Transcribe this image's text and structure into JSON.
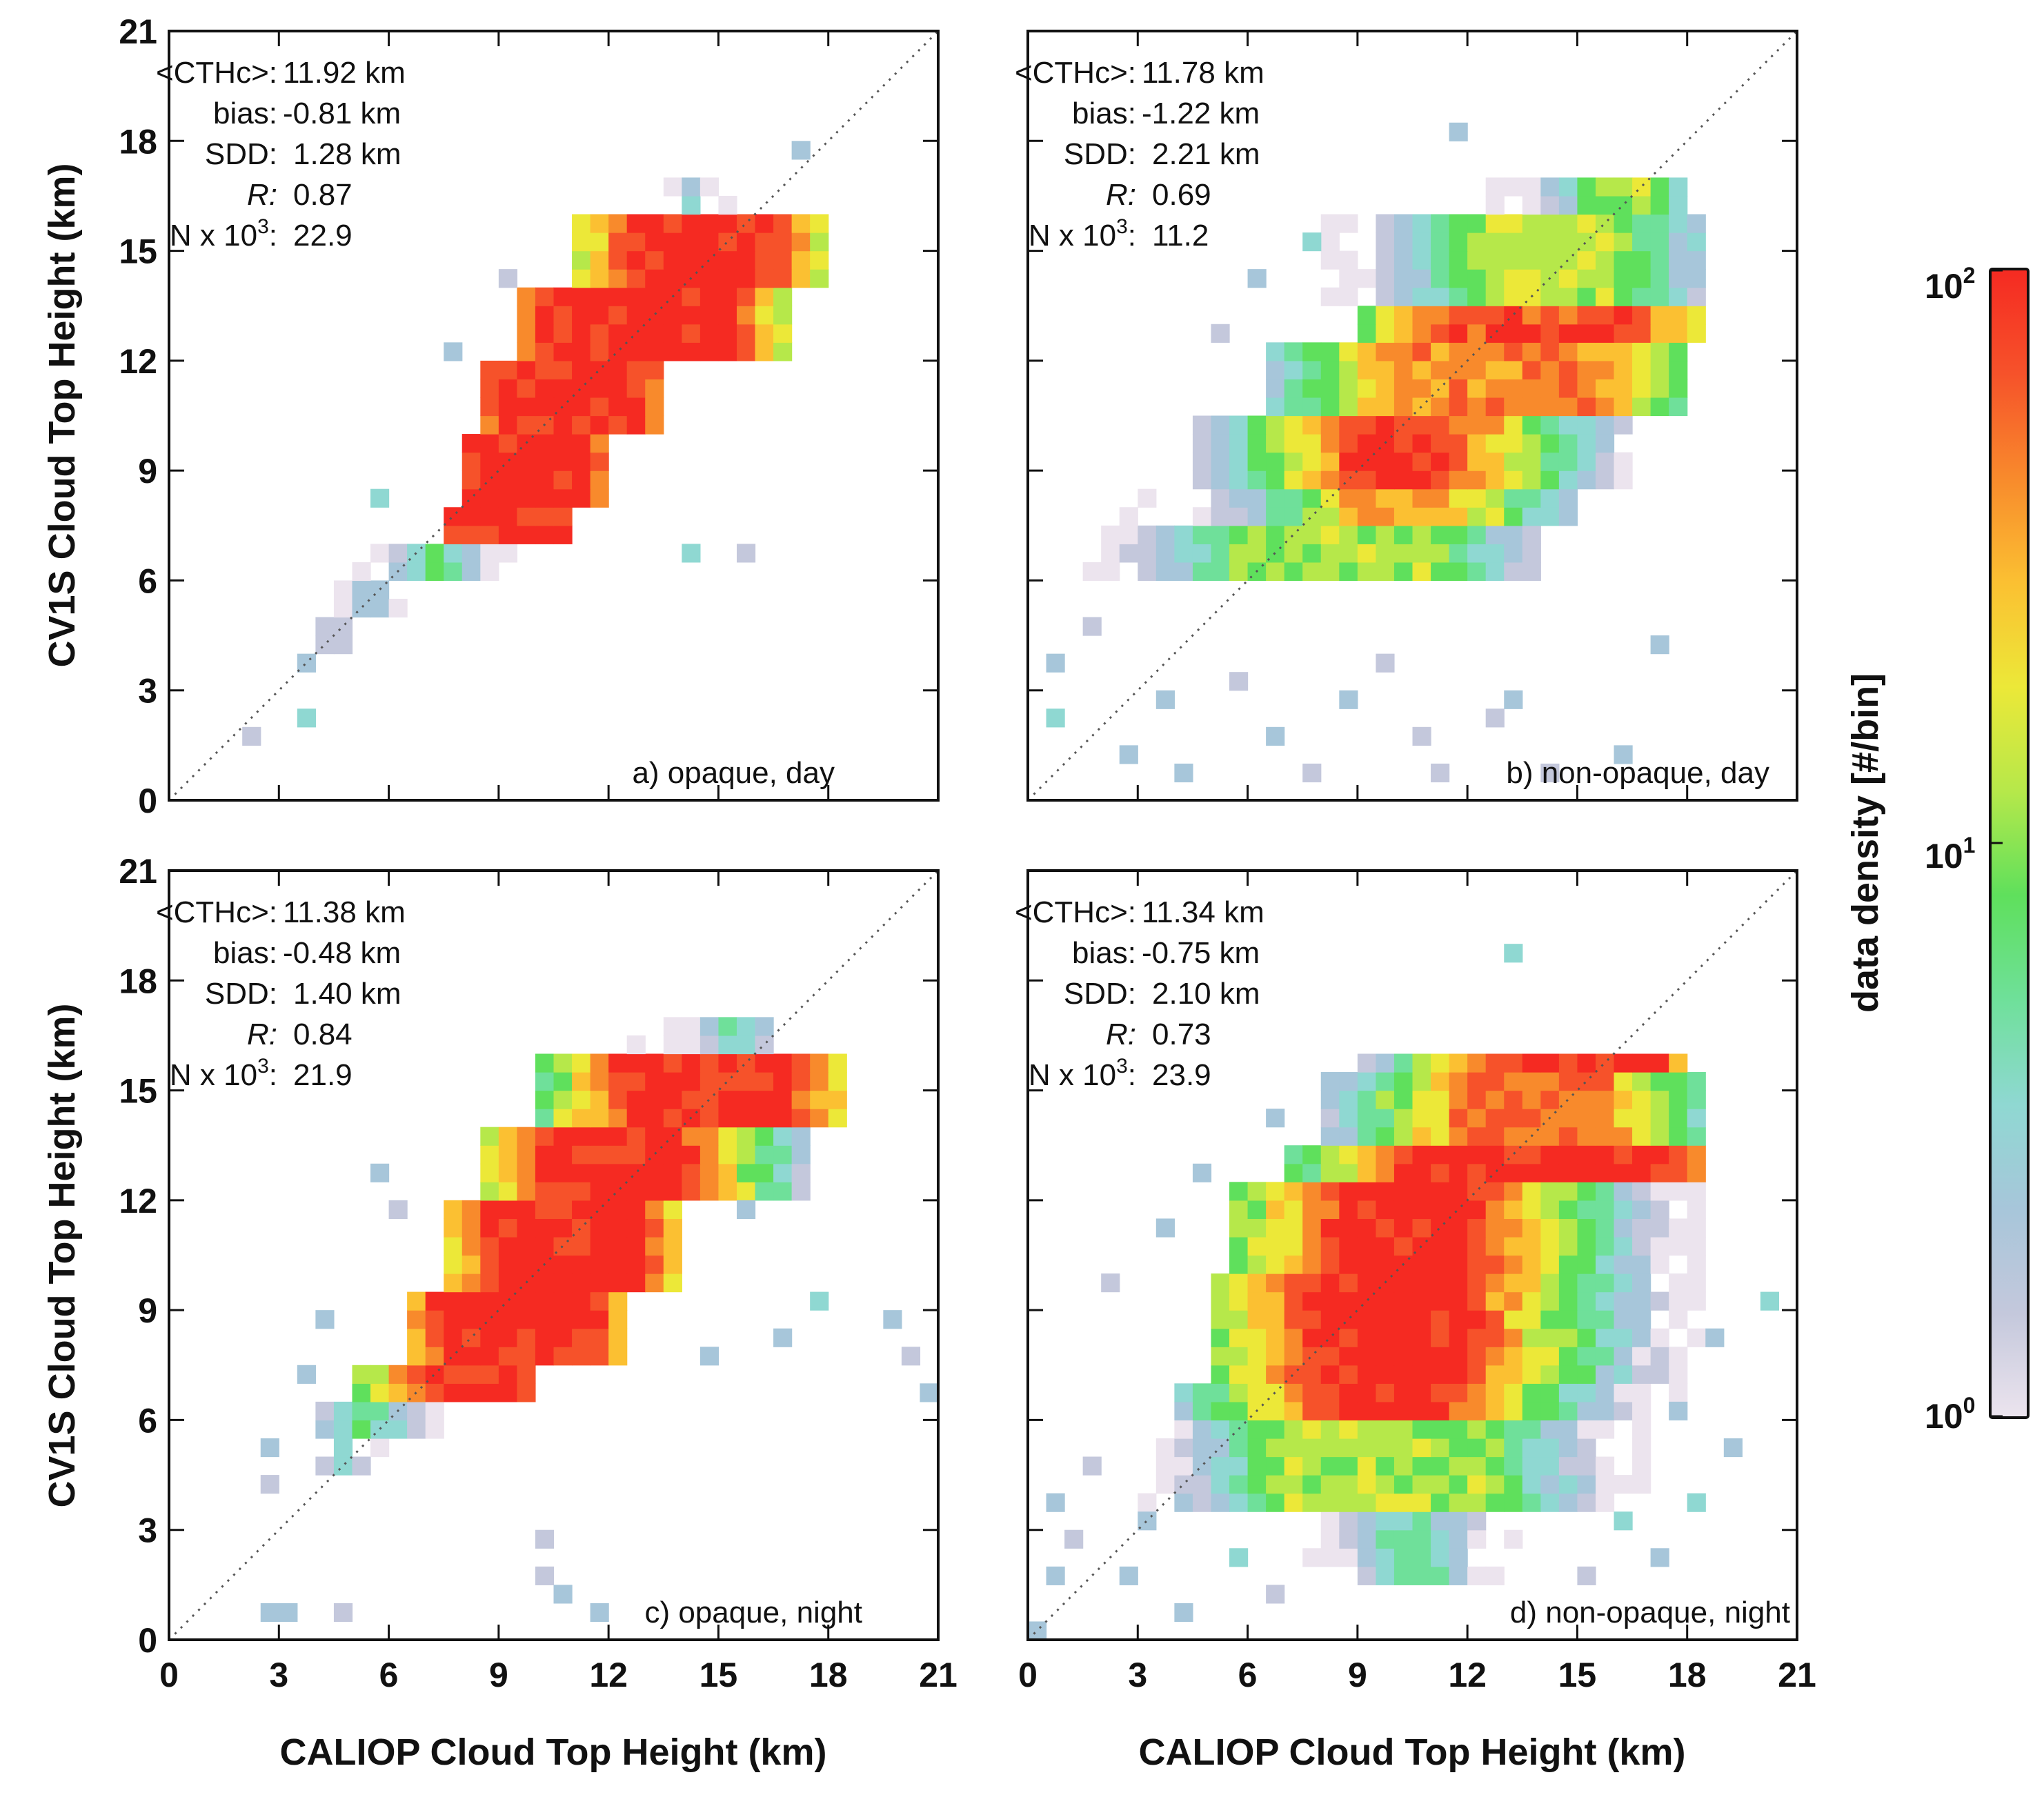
{
  "chart_data": {
    "type": "heatmap",
    "shared": {
      "xlabel": "CALIOP Cloud Top Height (km)",
      "ylabel": "CV1S Cloud Top Height (km)",
      "xlim": [
        0,
        21
      ],
      "ylim": [
        0,
        21
      ],
      "ticks": [
        0,
        3,
        6,
        9,
        12,
        15,
        18,
        21
      ],
      "bin_size_km": 0.5,
      "reference_line": "1:1 dotted"
    },
    "colorbar": {
      "label": "data density [#/bin]",
      "scale": "log",
      "range": [
        1,
        100
      ],
      "tick_labels": [
        {
          "base": "10",
          "exp": "2",
          "value": 100
        },
        {
          "base": "10",
          "exp": "1",
          "value": 10
        },
        {
          "base": "10",
          "exp": "0",
          "value": 1
        }
      ],
      "colors": [
        "#ece4ee",
        "#c4c8dc",
        "#a7c6da",
        "#8fd8d2",
        "#6fe09a",
        "#5fe05c",
        "#b6e84a",
        "#ece838",
        "#fbc032",
        "#f88a2c",
        "#f6522a",
        "#f52a22"
      ]
    },
    "panels": [
      {
        "id": "a",
        "label": "a) opaque, day",
        "stats": {
          "cth_label": "<CTHc>:",
          "cth": "11.92 km",
          "bias_label": "bias:",
          "bias": "-0.81 km",
          "sdd_label": "SDD:",
          "sdd": "1.28 km",
          "r_label": "R:",
          "r": "0.87",
          "n_label": "N x 10",
          "n_exp": "3",
          "n_suffix": ":",
          "n": "22.9"
        },
        "density_segments": [
          {
            "y0": 4,
            "y1": 5,
            "lo": 3.8,
            "hi": 5.2,
            "plo": 4.5,
            "phi": 4.5,
            "plateau": 2,
            "halo": 1.2
          },
          {
            "y0": 5,
            "y1": 6,
            "lo": 4.0,
            "hi": 6.5,
            "plo": 5.5,
            "phi": 5.5,
            "plateau": 3,
            "halo": 1.5
          },
          {
            "y0": 6,
            "y1": 7,
            "lo": 5.0,
            "hi": 9.5,
            "plo": 7.3,
            "phi": 7.3,
            "plateau": 8,
            "halo": 1.6
          },
          {
            "y0": 7,
            "y1": 8,
            "lo": 7.5,
            "hi": 11.0,
            "plo": 8.0,
            "phi": 10.5,
            "plateau": 100,
            "halo": 1.6
          },
          {
            "y0": 8,
            "y1": 10,
            "lo": 7.8,
            "hi": 12.0,
            "plo": 8.3,
            "phi": 11.3,
            "plateau": 100,
            "halo": 1.6
          },
          {
            "y0": 10,
            "y1": 12,
            "lo": 8.5,
            "hi": 13.5,
            "plo": 9.2,
            "phi": 12.8,
            "plateau": 100,
            "halo": 1.6
          },
          {
            "y0": 12,
            "y1": 14,
            "lo": 9.5,
            "hi": 17.0,
            "plo": 10.5,
            "phi": 15.3,
            "plateau": 100,
            "halo": 1.8
          },
          {
            "y0": 14,
            "y1": 16,
            "lo": 11.0,
            "hi": 18.0,
            "plo": 12.8,
            "phi": 16.3,
            "plateau": 100,
            "halo": 1.8
          },
          {
            "y0": 16,
            "y1": 17,
            "lo": 13.0,
            "hi": 15.5,
            "plo": 14.3,
            "phi": 14.3,
            "plateau": 3,
            "halo": 1.0
          }
        ],
        "sparse_points": [
          [
            2.0,
            1.5
          ],
          [
            3.8,
            3.5
          ],
          [
            3.8,
            2.2
          ],
          [
            5.5,
            8.0
          ],
          [
            9.0,
            14.0
          ],
          [
            9.5,
            13.0
          ],
          [
            17.0,
            17.5
          ],
          [
            15.5,
            6.5
          ],
          [
            14.0,
            6.8
          ],
          [
            7.5,
            12.0
          ]
        ],
        "hot_points": []
      },
      {
        "id": "b",
        "label": "b) non-opaque, day",
        "stats": {
          "cth_label": "<CTHc>:",
          "cth": "11.78 km",
          "bias_label": "bias:",
          "bias": "-1.22 km",
          "sdd_label": "SDD:",
          "sdd": "2.21 km",
          "r_label": "R:",
          "r": "0.69",
          "n_label": "N x 10",
          "n_exp": "3",
          "n_suffix": ":",
          "n": "11.2"
        },
        "density_segments": [
          {
            "y0": 6,
            "y1": 7.5,
            "lo": 1.5,
            "hi": 14.0,
            "plo": 6.0,
            "phi": 11.0,
            "plateau": 12,
            "halo": 3.0
          },
          {
            "y0": 7.5,
            "y1": 8.5,
            "lo": 2.5,
            "hi": 15.0,
            "plo": 9.0,
            "phi": 11.5,
            "plateau": 35,
            "halo": 2.6
          },
          {
            "y0": 8.5,
            "y1": 10.5,
            "lo": 4.5,
            "hi": 16.5,
            "plo": 9.0,
            "phi": 11.5,
            "plateau": 80,
            "halo": 2.6
          },
          {
            "y0": 10.5,
            "y1": 12.5,
            "lo": 6.5,
            "hi": 18.0,
            "plo": 10.0,
            "phi": 15.5,
            "plateau": 45,
            "halo": 2.8
          },
          {
            "y0": 12.5,
            "y1": 13.5,
            "lo": 9.0,
            "hi": 18.5,
            "plo": 11.5,
            "phi": 16.5,
            "plateau": 75,
            "halo": 2.6
          },
          {
            "y0": 13.5,
            "y1": 16,
            "lo": 8.0,
            "hi": 18.5,
            "plo": 12.5,
            "phi": 16.0,
            "plateau": 14,
            "halo": 2.8
          },
          {
            "y0": 16,
            "y1": 17,
            "lo": 12.5,
            "hi": 18.0,
            "plo": 15.5,
            "phi": 17.0,
            "plateau": 12,
            "halo": 1.5
          }
        ],
        "sparse_points": [
          [
            0.5,
            3.5
          ],
          [
            0.8,
            2.0
          ],
          [
            1.5,
            4.8
          ],
          [
            2.5,
            1.0
          ],
          [
            3.5,
            2.8
          ],
          [
            4.0,
            0.5
          ],
          [
            5.5,
            3.0
          ],
          [
            6.5,
            1.5
          ],
          [
            7.5,
            0.8
          ],
          [
            8.5,
            2.5
          ],
          [
            10.5,
            1.5
          ],
          [
            11.0,
            0.5
          ],
          [
            12.5,
            2.0
          ],
          [
            14.0,
            0.5
          ],
          [
            16.0,
            1.2
          ],
          [
            13.0,
            2.5
          ],
          [
            9.5,
            3.5
          ],
          [
            17.0,
            4.0
          ],
          [
            6.0,
            14.0
          ],
          [
            7.5,
            15.0
          ],
          [
            5.0,
            12.5
          ],
          [
            11.5,
            18.0
          ]
        ],
        "hot_points": []
      },
      {
        "id": "c",
        "label": "c) opaque, night",
        "stats": {
          "cth_label": "<CTHc>:",
          "cth": "11.38 km",
          "bias_label": "bias:",
          "bias": "-0.48 km",
          "sdd_label": "SDD:",
          "sdd": "1.40 km",
          "r_label": "R:",
          "r": "0.84",
          "n_label": "N x 10",
          "n_exp": "3",
          "n_suffix": ":",
          "n": "21.9"
        },
        "density_segments": [
          {
            "y0": 4.5,
            "y1": 5.5,
            "lo": 3.5,
            "hi": 6.0,
            "plo": 4.8,
            "phi": 4.8,
            "plateau": 3,
            "halo": 1.3
          },
          {
            "y0": 5.5,
            "y1": 6.5,
            "lo": 3.5,
            "hi": 7.5,
            "plo": 5.5,
            "phi": 5.5,
            "plateau": 8,
            "halo": 1.8
          },
          {
            "y0": 6.5,
            "y1": 7.5,
            "lo": 5.0,
            "hi": 10.0,
            "plo": 7.0,
            "phi": 9.5,
            "plateau": 100,
            "halo": 1.6
          },
          {
            "y0": 7.5,
            "y1": 9.5,
            "lo": 6.5,
            "hi": 12.5,
            "plo": 7.5,
            "phi": 11.5,
            "plateau": 100,
            "halo": 1.8
          },
          {
            "y0": 9.5,
            "y1": 12,
            "lo": 7.5,
            "hi": 14.0,
            "plo": 9.0,
            "phi": 12.7,
            "plateau": 100,
            "halo": 1.8
          },
          {
            "y0": 12,
            "y1": 14,
            "lo": 8.5,
            "hi": 17.5,
            "plo": 10.5,
            "phi": 14.0,
            "plateau": 100,
            "halo": 2.0
          },
          {
            "y0": 14,
            "y1": 16,
            "lo": 10.0,
            "hi": 18.5,
            "plo": 12.5,
            "phi": 17.0,
            "plateau": 90,
            "halo": 2.0
          },
          {
            "y0": 16,
            "y1": 17,
            "lo": 12.5,
            "hi": 16.5,
            "plo": 15.5,
            "phi": 15.5,
            "plateau": 6,
            "halo": 1.5
          }
        ],
        "sparse_points": [
          [
            2.5,
            5.0
          ],
          [
            2.5,
            0.8
          ],
          [
            3.2,
            0.8
          ],
          [
            4.5,
            0.8
          ],
          [
            10.0,
            1.5
          ],
          [
            10.5,
            1.0
          ],
          [
            10.0,
            2.5
          ],
          [
            11.5,
            0.8
          ],
          [
            3.8,
            7.0
          ],
          [
            4.2,
            8.5
          ],
          [
            5.5,
            12.8
          ],
          [
            6.0,
            11.5
          ],
          [
            14.5,
            7.5
          ],
          [
            16.5,
            8.0
          ],
          [
            17.5,
            9.0
          ],
          [
            19.5,
            8.5
          ],
          [
            20.0,
            7.5
          ],
          [
            20.5,
            6.5
          ],
          [
            15.5,
            11.5
          ],
          [
            2.5,
            4.0
          ]
        ],
        "hot_points": []
      },
      {
        "id": "d",
        "label": "d) non-opaque, night",
        "stats": {
          "cth_label": "<CTHc>:",
          "cth": "11.34 km",
          "bias_label": "bias:",
          "bias": "-0.75 km",
          "sdd_label": "SDD:",
          "sdd": "2.10 km",
          "r_label": "R:",
          "r": "0.73",
          "n_label": "N x 10",
          "n_exp": "3",
          "n_suffix": ":",
          "n": "23.9"
        },
        "density_segments": [
          {
            "y0": 1.5,
            "y1": 3.5,
            "lo": 7.5,
            "hi": 13.5,
            "plo": 10.0,
            "phi": 11.0,
            "plateau": 5,
            "halo": 2.0
          },
          {
            "y0": 3.5,
            "y1": 6,
            "lo": 3.0,
            "hi": 17.0,
            "plo": 7.0,
            "phi": 12.5,
            "plateau": 12,
            "halo": 3.0
          },
          {
            "y0": 6,
            "y1": 7,
            "lo": 4.0,
            "hi": 18.0,
            "plo": 8.5,
            "phi": 11.0,
            "plateau": 100,
            "halo": 2.8
          },
          {
            "y0": 7,
            "y1": 10,
            "lo": 5.0,
            "hi": 18.5,
            "plo": 8.0,
            "phi": 11.8,
            "plateau": 100,
            "halo": 2.8
          },
          {
            "y0": 10,
            "y1": 12.5,
            "lo": 5.5,
            "hi": 18.5,
            "plo": 8.8,
            "phi": 12.0,
            "plateau": 100,
            "halo": 2.8
          },
          {
            "y0": 12.5,
            "y1": 13.5,
            "lo": 7.0,
            "hi": 18.5,
            "plo": 10.5,
            "phi": 17.0,
            "plateau": 100,
            "halo": 2.6
          },
          {
            "y0": 13.5,
            "y1": 15.5,
            "lo": 8.0,
            "hi": 18.5,
            "plo": 12.0,
            "phi": 15.5,
            "plateau": 55,
            "halo": 2.6
          },
          {
            "y0": 15.5,
            "y1": 16,
            "lo": 9.0,
            "hi": 18.0,
            "plo": 13.0,
            "phi": 17.0,
            "plateau": 100,
            "halo": 2.0
          }
        ],
        "sparse_points": [
          [
            0.3,
            0.3
          ],
          [
            0.5,
            1.5
          ],
          [
            0.8,
            3.5
          ],
          [
            1.2,
            2.5
          ],
          [
            1.5,
            4.8
          ],
          [
            2.5,
            1.5
          ],
          [
            3.0,
            3.0
          ],
          [
            4.0,
            0.8
          ],
          [
            5.5,
            2.0
          ],
          [
            6.5,
            1.0
          ],
          [
            15.0,
            1.5
          ],
          [
            16.0,
            3.0
          ],
          [
            17.0,
            2.0
          ],
          [
            18.0,
            3.5
          ],
          [
            2.0,
            9.5
          ],
          [
            3.5,
            11.0
          ],
          [
            4.5,
            12.5
          ],
          [
            5.5,
            10.0
          ],
          [
            6.5,
            14.0
          ],
          [
            13.0,
            18.5
          ],
          [
            18.5,
            8.0
          ],
          [
            19.0,
            5.0
          ],
          [
            17.5,
            6.0
          ],
          [
            20.0,
            9.0
          ]
        ],
        "hot_points": []
      }
    ]
  }
}
